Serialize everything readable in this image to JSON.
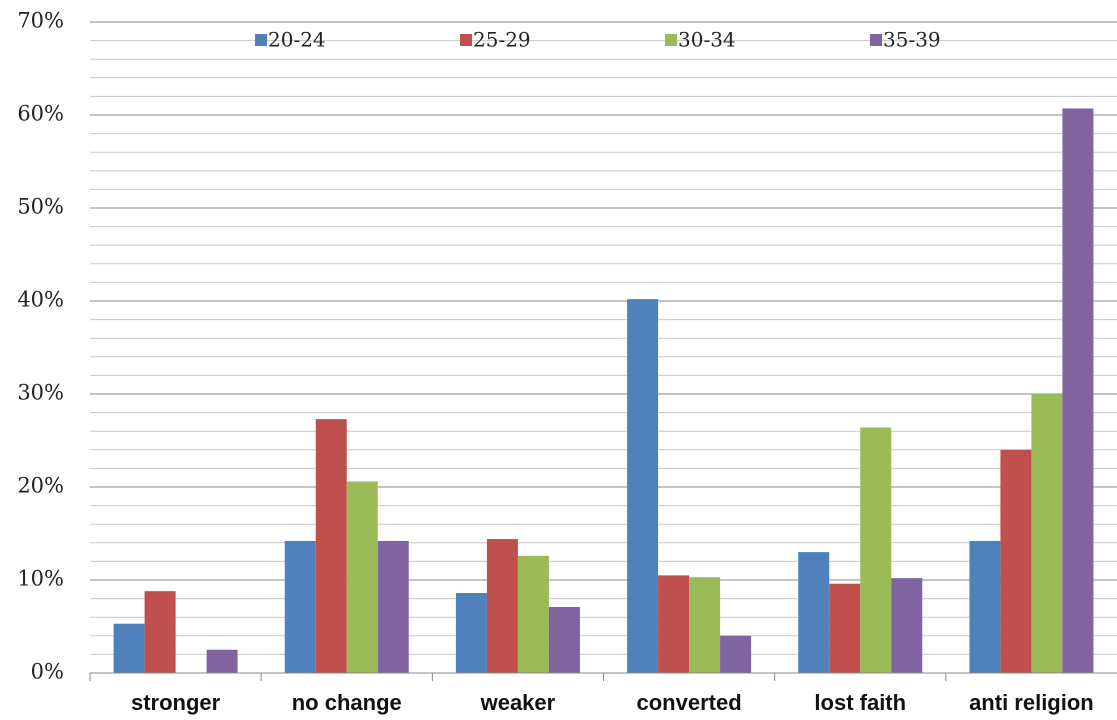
{
  "chart_data": {
    "type": "bar",
    "categories": [
      "stronger",
      "no change",
      "weaker",
      "converted",
      "lost faith",
      "anti religion"
    ],
    "series": [
      {
        "name": "20-24",
        "color": "#4f81bd",
        "values": [
          5.3,
          14.2,
          8.6,
          40.2,
          13.0,
          14.2
        ]
      },
      {
        "name": "25-29",
        "color": "#c0504d",
        "values": [
          8.8,
          27.3,
          14.4,
          10.5,
          9.6,
          24.0
        ]
      },
      {
        "name": "30-34",
        "color": "#9bbb59",
        "values": [
          0,
          20.6,
          12.6,
          10.3,
          26.4,
          30.0
        ]
      },
      {
        "name": "35-39",
        "color": "#8064a2",
        "values": [
          2.5,
          14.2,
          7.1,
          4.0,
          10.2,
          60.7
        ]
      }
    ],
    "ylim": [
      0,
      70
    ],
    "yticks": [
      {
        "value": 0,
        "label": "0%"
      },
      {
        "value": 10,
        "label": "10%"
      },
      {
        "value": 20,
        "label": "20%"
      },
      {
        "value": 30,
        "label": "30%"
      },
      {
        "value": 40,
        "label": "40%"
      },
      {
        "value": 50,
        "label": "50%"
      },
      {
        "value": 60,
        "label": "60%"
      },
      {
        "value": 70,
        "label": "70%"
      }
    ],
    "grid": true,
    "minor_grid": 2,
    "legend": "top"
  }
}
